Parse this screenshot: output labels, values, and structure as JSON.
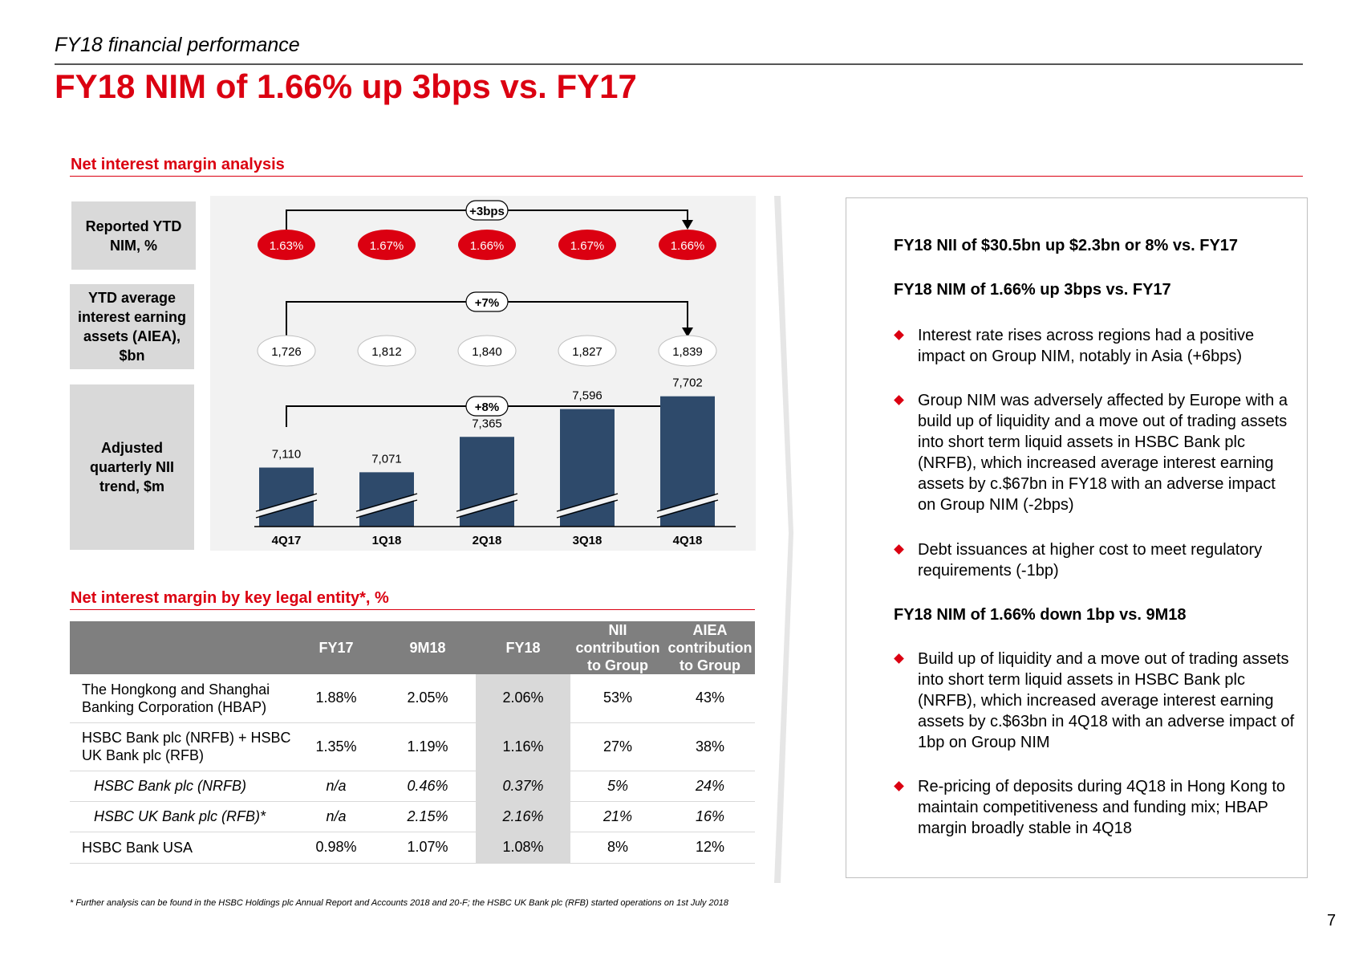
{
  "header": {
    "subtitle": "FY18 financial performance",
    "title": "FY18 NIM of 1.66% up 3bps vs. FY17"
  },
  "nim_analysis": {
    "heading": "Net interest margin analysis",
    "row_labels": [
      "Reported YTD NIM, %",
      "YTD average interest earning assets (AIEA), $bn",
      "Adjusted quarterly NII trend, $m"
    ],
    "nim_change": "+3bps",
    "aiea_change": "+7%",
    "nii_change": "+8%"
  },
  "chart_data": {
    "type": "bar",
    "categories": [
      "4Q17",
      "1Q18",
      "2Q18",
      "3Q18",
      "4Q18"
    ],
    "series": [
      {
        "name": "Reported YTD NIM, %",
        "values": [
          "1.63%",
          "1.67%",
          "1.66%",
          "1.67%",
          "1.66%"
        ]
      },
      {
        "name": "YTD average interest earning assets (AIEA), $bn",
        "values": [
          "1,726",
          "1,812",
          "1,840",
          "1,827",
          "1,839"
        ]
      },
      {
        "name": "Adjusted quarterly NII trend, $m",
        "values": [
          7110,
          7071,
          7365,
          7596,
          7702
        ],
        "labels": [
          "7,110",
          "7,071",
          "7,365",
          "7,596",
          "7,702"
        ]
      }
    ],
    "axis_break": true
  },
  "legal_entity": {
    "heading": "Net interest margin by key legal entity*, %",
    "columns": [
      "FY17",
      "9M18",
      "FY18",
      "NII contribution to Group",
      "AIEA contribution to Group"
    ],
    "rows": [
      {
        "label": "The Hongkong and Shanghai Banking Corporation (HBAP)",
        "values": [
          "1.88%",
          "2.05%",
          "2.06%",
          "53%",
          "43%"
        ],
        "italic": false
      },
      {
        "label": "HSBC Bank plc (NRFB) + HSBC UK Bank plc (RFB)",
        "values": [
          "1.35%",
          "1.19%",
          "1.16%",
          "27%",
          "38%"
        ],
        "italic": false
      },
      {
        "label": "HSBC Bank plc (NRFB)",
        "values": [
          "n/a",
          "0.46%",
          "0.37%",
          "5%",
          "24%"
        ],
        "italic": true
      },
      {
        "label": "HSBC UK Bank plc (RFB)*",
        "values": [
          "n/a",
          "2.15%",
          "2.16%",
          "21%",
          "16%"
        ],
        "italic": true
      },
      {
        "label": "HSBC Bank USA",
        "values": [
          "0.98%",
          "1.07%",
          "1.08%",
          "8%",
          "12%"
        ],
        "italic": false
      }
    ]
  },
  "commentary": {
    "head1": "FY18 NII of $30.5bn up $2.3bn or 8% vs. FY17",
    "head2": "FY18 NIM of 1.66% up 3bps vs. FY17",
    "bullets1": [
      "Interest rate rises across regions had a positive impact on Group NIM, notably in Asia (+6bps)",
      "Group NIM was adversely affected by Europe with a build up of liquidity and a move out of trading assets into short term liquid assets in HSBC Bank plc (NRFB), which increased average interest earning assets by c.$67bn in FY18 with an adverse impact on Group NIM (-2bps)",
      "Debt issuances at higher cost to meet regulatory requirements (-1bp)"
    ],
    "head3": "FY18 NIM of 1.66% down 1bp vs. 9M18",
    "bullets2": [
      "Build up of liquidity and a move out of trading assets into short term liquid assets in HSBC Bank plc (NRFB), which increased average interest earning assets by c.$63bn in 4Q18 with an adverse impact of 1bp on Group NIM",
      "Re-pricing of deposits during 4Q18 in Hong Kong to maintain competitiveness and funding mix; HBAP margin broadly stable in 4Q18"
    ]
  },
  "footnote": "* Further analysis can be found in the HSBC Holdings plc Annual Report and Accounts 2018 and 20-F; the HSBC UK Bank plc (RFB) started operations on 1st July 2018",
  "page_number": "7",
  "colors": {
    "red": "#db0011",
    "navy": "#2e4a6b",
    "grey": "#d9d9d9",
    "header_grey": "#7f7f7f"
  }
}
